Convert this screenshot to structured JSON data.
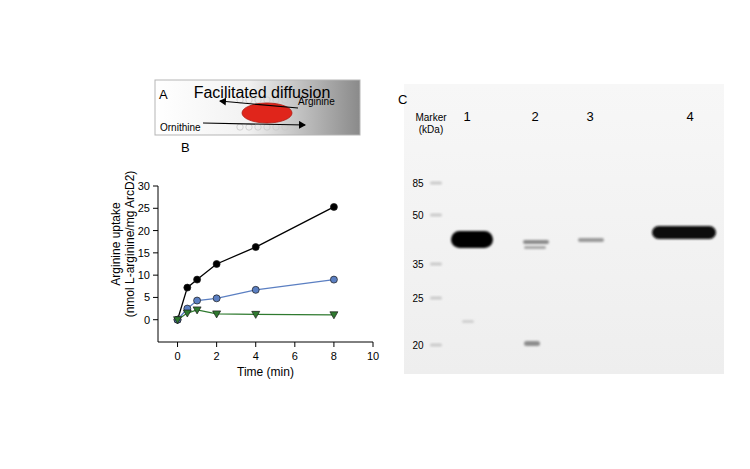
{
  "chart_data": {
    "type": "line",
    "title": "B",
    "x_label": "Time (min)",
    "y_label": [
      "Arginine uptake",
      "(nmol L-arginine/mg ArcD2)"
    ],
    "x": [
      0,
      0.5,
      1,
      2,
      4,
      8
    ],
    "series": [
      {
        "color": "#000000",
        "marker": "circle",
        "line_style": "solid",
        "values": [
          0,
          7.2,
          9,
          12.5,
          16.3,
          25.3
        ]
      },
      {
        "color": "#5b7fc2",
        "marker": "circle",
        "line_style": "solid",
        "values": [
          0,
          2.5,
          4.3,
          4.8,
          6.7,
          9
        ]
      },
      {
        "color": "#2f7a2f",
        "marker": "triangle",
        "line_style": "solid",
        "values": [
          0,
          1.5,
          2.2,
          1.3,
          1.2,
          1.1
        ]
      }
    ],
    "xlim": [
      -1,
      10
    ],
    "xticks": [
      0,
      2,
      4,
      6,
      8,
      10
    ],
    "ylim": [
      -5,
      30
    ],
    "yticks": [
      0,
      5,
      10,
      15,
      20,
      25,
      30
    ],
    "grid": false
  },
  "diagram": {
    "panel_label": "A",
    "title": "Facilitated diffusion",
    "substrates": [
      "Ornithine",
      "Arginine"
    ]
  },
  "blot": {
    "panel_label": "C",
    "marker_title": [
      "Marker",
      "(kDa)"
    ],
    "markers": [
      85,
      50,
      35,
      25,
      20
    ],
    "lanes": [
      "1",
      "2",
      "3",
      "4"
    ]
  }
}
